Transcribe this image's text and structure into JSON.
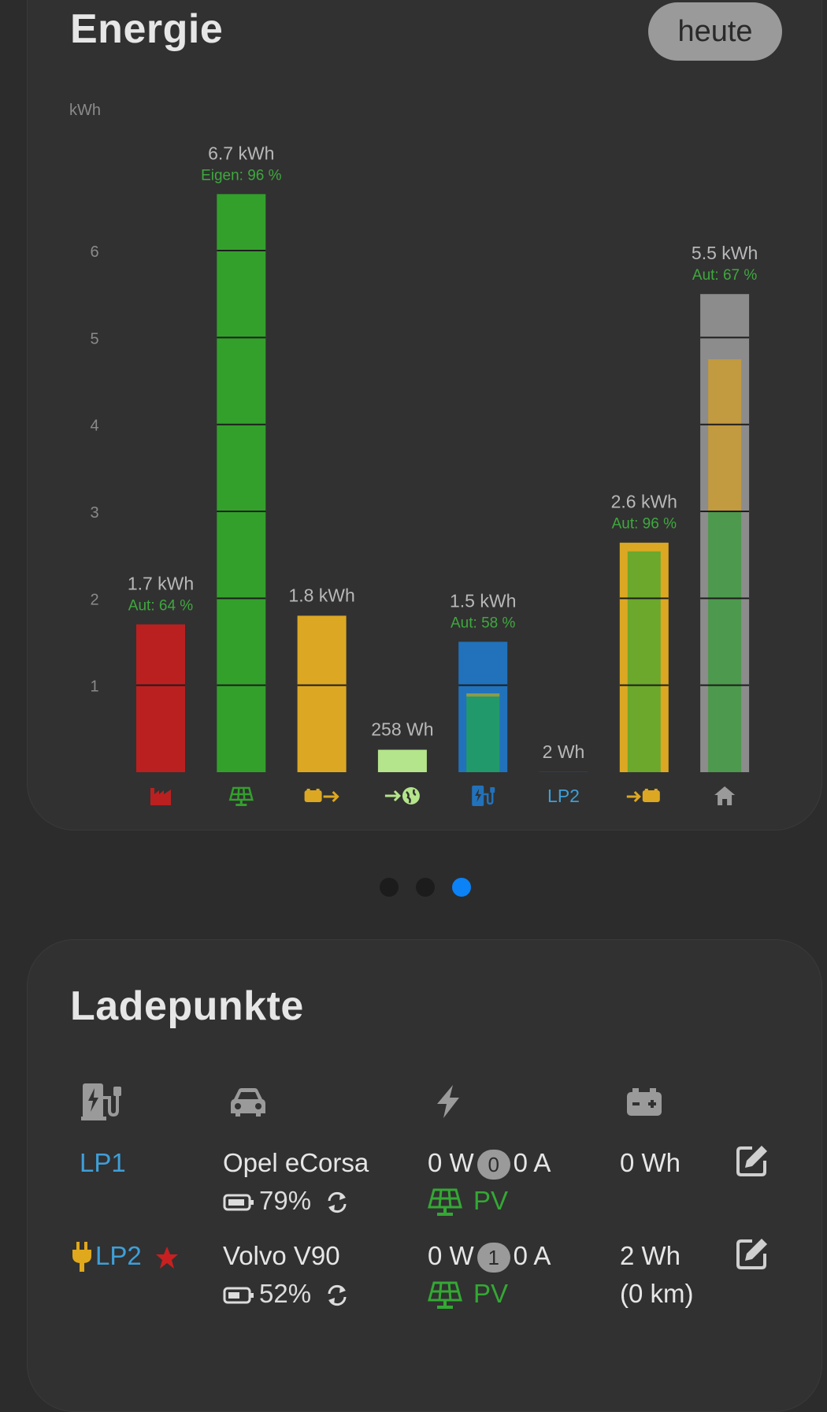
{
  "energy": {
    "title": "Energie",
    "range_button": "heute",
    "chart_data": {
      "type": "bar",
      "ylabel": "kWh",
      "yticks": [
        1,
        2,
        3,
        4,
        5,
        6
      ],
      "ylim": [
        0,
        7.07
      ],
      "bars": [
        {
          "name": "import",
          "icon": "factory-icon",
          "value": 1.7,
          "label": "1.7 kWh",
          "sublabel": "Aut: 64 %",
          "color": "#bb2020"
        },
        {
          "name": "pv",
          "icon": "solar-panel-icon",
          "value": 6.65,
          "label": "6.7 kWh",
          "sublabel": "Eigen: 96 %",
          "color": "#33a02c"
        },
        {
          "name": "battery-discharge",
          "icon": "battery-out-icon",
          "value": 1.8,
          "label": "1.8 kWh",
          "sublabel": "",
          "color": "#dca823"
        },
        {
          "name": "export",
          "icon": "export-globe-icon",
          "value": 0.258,
          "label": "258 Wh",
          "sublabel": "",
          "color": "#b4e48b"
        },
        {
          "name": "charge-point",
          "icon": "charging-station-icon",
          "value": 1.5,
          "inner_value": 0.87,
          "label": "1.5 kWh",
          "sublabel": "Aut: 58 %",
          "color": "#2172bb",
          "inner_color": "#22996a"
        },
        {
          "name": "LP2",
          "icon": "",
          "value": 0.002,
          "label": "2 Wh",
          "sublabel": "",
          "color": "#2172bb",
          "axis_text": "LP2"
        },
        {
          "name": "battery-charge",
          "icon": "battery-in-icon",
          "value": 2.64,
          "inner_value": 2.54,
          "label": "2.6 kWh",
          "sublabel": "Aut: 96 %",
          "color": "#dca823",
          "inner_color": "#6ba82b"
        },
        {
          "name": "house",
          "icon": "house-icon",
          "value": 5.5,
          "inner_top": 4.75,
          "inner_split": 3.0,
          "label": "5.5 kWh",
          "sublabel": "Aut: 67 %",
          "color": "#8c8c8c",
          "inner_color_top": "#c29a3f",
          "inner_color_bottom": "#4d994d"
        }
      ]
    }
  },
  "pager": {
    "count": 3,
    "active": 2
  },
  "ladepunkte": {
    "title": "Ladepunkte",
    "header_icons": [
      "charging-station-icon",
      "car-icon",
      "bolt-icon",
      "battery-icon"
    ],
    "rows": [
      {
        "name": "LP1",
        "plug": false,
        "star": false,
        "vehicle": "Opel eCorsa",
        "soc": "79%",
        "power": "0 W",
        "phases": "0",
        "current": "0 A",
        "mode": "PV",
        "energy": "0 Wh",
        "range": ""
      },
      {
        "name": "LP2",
        "plug": true,
        "star": true,
        "vehicle": "Volvo V90",
        "soc": "52%",
        "power": "0 W",
        "phases": "1",
        "current": "0 A",
        "mode": "PV",
        "energy": "2 Wh",
        "range": "(0 km)"
      }
    ]
  }
}
